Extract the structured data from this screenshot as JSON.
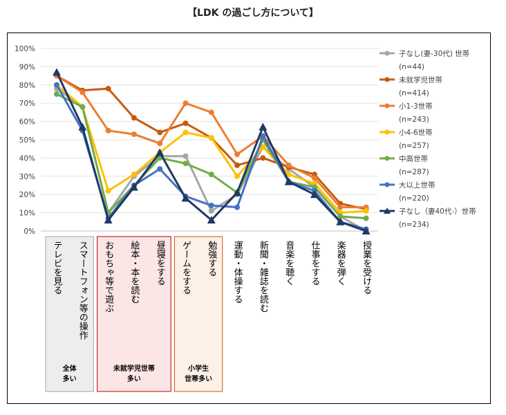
{
  "chart_data": {
    "type": "line",
    "title": "【LDK の過ごし方について】",
    "categories": [
      "テレビを見る",
      "スマートフォン等の操作",
      "おもちゃ等で遊ぶ",
      "絵本・本を読む",
      "昼寝をする",
      "ゲームをする",
      "勉強する",
      "運動・体操する",
      "新聞・雑誌を読む",
      "音楽を聴く",
      "仕事をする",
      "楽器を弾く",
      "授業を受ける"
    ],
    "y_ticks": [
      "0%",
      "10%",
      "20%",
      "30%",
      "40%",
      "50%",
      "60%",
      "70%",
      "80%",
      "90%",
      "100%"
    ],
    "ylim": [
      0,
      100
    ],
    "legend_position": "right",
    "series": [
      {
        "name": "子なし(妻-30代) 世帯",
        "n": "(n=44)",
        "color": "#a5a5a5",
        "marker": "circle",
        "values": [
          78,
          68,
          10,
          30,
          41,
          41,
          11,
          20,
          46,
          34,
          24,
          8,
          0
        ]
      },
      {
        "name": "未就学児世帯",
        "n": "(n=414)",
        "color": "#c55a11",
        "marker": "circle",
        "values": [
          85,
          77,
          78,
          62,
          54,
          59,
          51,
          36,
          40,
          35,
          31,
          15,
          12
        ]
      },
      {
        "name": "小1-3世帯",
        "n": "(n=243)",
        "color": "#ed7d31",
        "marker": "circle",
        "values": [
          85,
          76,
          55,
          53,
          48,
          70,
          65,
          42,
          52,
          36,
          29,
          13,
          13
        ]
      },
      {
        "name": "小4-6世帯",
        "n": "(n=257)",
        "color": "#ffc000",
        "marker": "circle",
        "values": [
          80,
          68,
          22,
          31,
          43,
          54,
          51,
          30,
          46,
          31,
          26,
          10,
          11
        ]
      },
      {
        "name": "中高世帯",
        "n": "(n=287)",
        "color": "#70ad47",
        "marker": "circle",
        "values": [
          75,
          68,
          10,
          25,
          40,
          37,
          31,
          21,
          50,
          27,
          24,
          8,
          7
        ]
      },
      {
        "name": "大以上世帯",
        "n": "(n=220)",
        "color": "#4472c4",
        "marker": "circle",
        "values": [
          80,
          55,
          7,
          25,
          34,
          19,
          14,
          13,
          52,
          27,
          22,
          5,
          1
        ]
      },
      {
        "name": "子なし（妻40代-）世帯",
        "n": "(n=234)",
        "color": "#203864",
        "marker": "triangle",
        "values": [
          87,
          57,
          6,
          24,
          43,
          18,
          6,
          21,
          57,
          27,
          20,
          5,
          0
        ]
      }
    ],
    "annotations": [
      {
        "label_lines": [
          "全体",
          "多い"
        ],
        "border": "#a5a5a5",
        "fill": "#ededed",
        "from": 0,
        "to": 1
      },
      {
        "label_lines": [
          "未就学児世帯",
          "多い"
        ],
        "border": "#c00000",
        "fill": "#fbe5e5",
        "from": 2,
        "to": 4
      },
      {
        "label_lines": [
          "小学生",
          "世帯多い"
        ],
        "border": "#c55a11",
        "fill": "#fdf0e6",
        "from": 5,
        "to": 6
      }
    ]
  }
}
